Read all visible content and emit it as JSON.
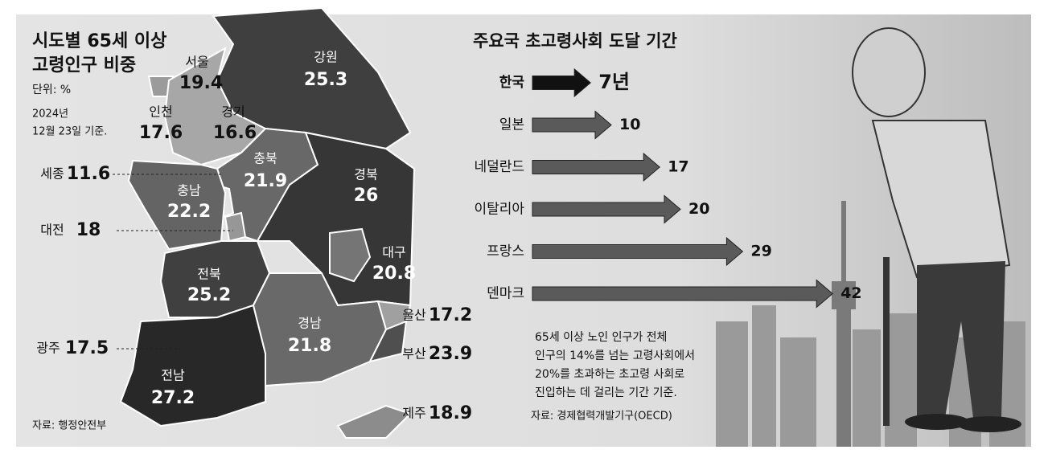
{
  "chart_data": [
    {
      "type": "map",
      "title_lines": [
        "시도별 65세 이상",
        "고령인구 비중"
      ],
      "unit": "단위: %",
      "date_lines": [
        "2024년",
        "12월 23일 기준."
      ],
      "source": "자료: 행정안전부",
      "categories": [
        "서울",
        "인천",
        "경기",
        "강원",
        "충북",
        "세종",
        "충남",
        "대전",
        "경북",
        "대구",
        "전북",
        "광주",
        "전남",
        "경남",
        "울산",
        "부산",
        "제주"
      ],
      "values": [
        19.4,
        17.6,
        16.6,
        25.3,
        21.9,
        11.6,
        22.2,
        18.0,
        26.0,
        20.8,
        25.2,
        17.5,
        27.2,
        21.8,
        17.2,
        23.9,
        18.9
      ]
    },
    {
      "type": "bar",
      "title": "주요국 초고령사회 도달 기간",
      "categories": [
        "한국",
        "일본",
        "네덜란드",
        "이탈리아",
        "프랑스",
        "덴마크"
      ],
      "values": [
        7,
        10,
        17,
        20,
        29,
        42
      ],
      "value_labels": [
        "7년",
        "10",
        "17",
        "20",
        "29",
        "42"
      ],
      "colors": [
        "#111111",
        "#5a5a5a",
        "#5a5a5a",
        "#5a5a5a",
        "#5a5a5a",
        "#5a5a5a"
      ],
      "note_lines": [
        "65세 이상 노인 인구가 전체",
        "인구의 14%를 넘는 고령사회에서",
        "20%를 초과하는 초고령 사회로",
        "진입하는 데 걸리는 기간 기준."
      ],
      "source": "자료: 경제협력개발기구(OECD)"
    }
  ]
}
